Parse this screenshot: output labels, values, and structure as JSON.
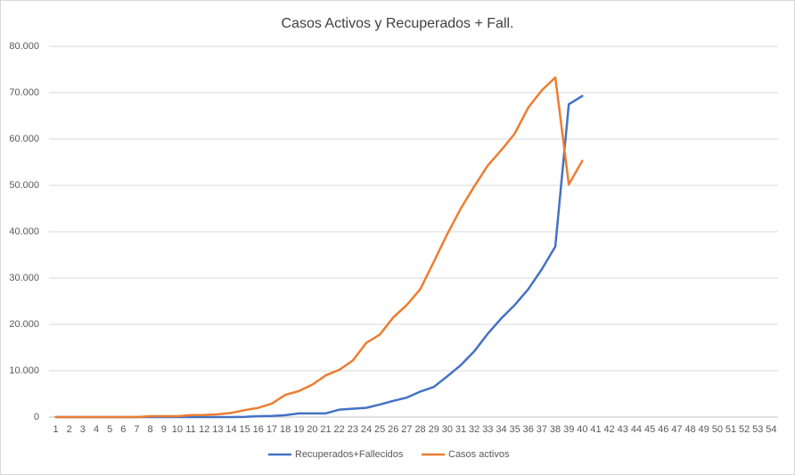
{
  "chart_data": {
    "type": "line",
    "title": "Casos Activos y Recuperados + Fall.",
    "categories": [
      1,
      2,
      3,
      4,
      5,
      6,
      7,
      8,
      9,
      10,
      11,
      12,
      13,
      14,
      15,
      16,
      17,
      18,
      19,
      20,
      21,
      22,
      23,
      24,
      25,
      26,
      27,
      28,
      29,
      30,
      31,
      32,
      33,
      34,
      35,
      36,
      37,
      38,
      39,
      40,
      41,
      42,
      43,
      44,
      45,
      46,
      47,
      48,
      49,
      50,
      51,
      52,
      53,
      54
    ],
    "series": [
      {
        "name": "Recuperados+Fallecidos",
        "color": "#4472c4",
        "values": [
          0,
          0,
          0,
          0,
          0,
          0,
          0,
          0,
          0,
          0,
          0,
          0,
          0,
          0,
          50,
          200,
          250,
          400,
          800,
          800,
          800,
          1600,
          1800,
          2000,
          2700,
          3500,
          4200,
          5500,
          6500,
          8800,
          11200,
          14200,
          18000,
          21300,
          24200,
          27600,
          31900,
          36800,
          67500,
          69300,
          null,
          null,
          null,
          null,
          null,
          null,
          null,
          null,
          null,
          null,
          null,
          null,
          null,
          null
        ]
      },
      {
        "name": "Casos activos",
        "color": "#ed7d31",
        "values": [
          0,
          0,
          0,
          0,
          0,
          0,
          0,
          200,
          200,
          200,
          400,
          450,
          600,
          900,
          1500,
          2000,
          2900,
          4800,
          5600,
          7000,
          9000,
          10200,
          12200,
          16000,
          17800,
          21500,
          24200,
          27600,
          33500,
          39500,
          45000,
          49800,
          54300,
          57600,
          61200,
          66800,
          70500,
          73300,
          50200,
          55300,
          null,
          null,
          null,
          null,
          null,
          null,
          null,
          null,
          null,
          null,
          null,
          null,
          null,
          null
        ]
      }
    ],
    "ylim": [
      0,
      80000
    ],
    "yticks": [
      0,
      {
        "value": 10000,
        "label": "10.000"
      },
      {
        "value": 20000,
        "label": "20.000"
      },
      {
        "value": 30000,
        "label": "30.000"
      },
      {
        "value": 40000,
        "label": "40.000"
      },
      {
        "value": 50000,
        "label": "50.000"
      },
      {
        "value": 60000,
        "label": "60.000"
      },
      {
        "value": 70000,
        "label": "70.000"
      },
      {
        "value": 80000,
        "label": "80.000"
      }
    ],
    "grid": true,
    "legend": "bottom"
  }
}
